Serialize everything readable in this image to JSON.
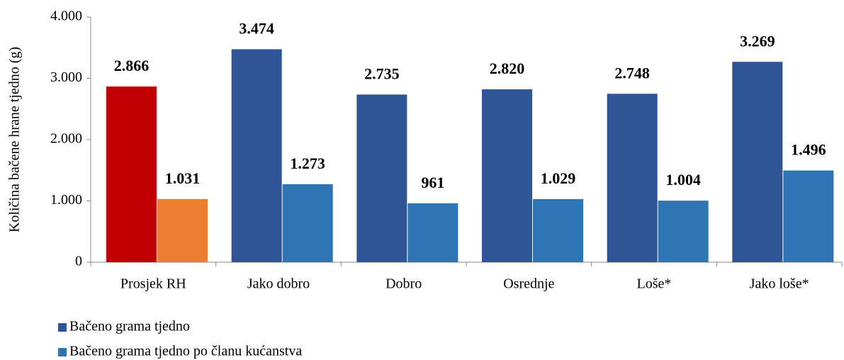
{
  "chart_data": {
    "type": "bar",
    "y_label": "Količina bačene hrane tjedno (g)",
    "categories": [
      "Prosjek RH",
      "Jako dobro",
      "Dobro",
      "Osrednje",
      "Loše*",
      "Jako loše*"
    ],
    "series": [
      {
        "name": "Bačeno grama tjedno",
        "color": "#2f5597",
        "colors": [
          "#c00000",
          "#2f5597",
          "#2f5597",
          "#2f5597",
          "#2f5597",
          "#2f5597"
        ],
        "values": [
          2866,
          3474,
          2735,
          2820,
          2748,
          3269
        ],
        "value_labels": [
          "2.866",
          "3.474",
          "2.735",
          "2.820",
          "2.748",
          "3.269"
        ]
      },
      {
        "name": "Bačeno grama tjedno po članu kućanstva",
        "color": "#2e75b6",
        "colors": [
          "#ed7d31",
          "#2e75b6",
          "#2e75b6",
          "#2e75b6",
          "#2e75b6",
          "#2e75b6"
        ],
        "values": [
          1031,
          1273,
          961,
          1029,
          1004,
          1496
        ],
        "value_labels": [
          "1.031",
          "1.273",
          "961",
          "1.029",
          "1.004",
          "1.496"
        ]
      }
    ],
    "ylim": [
      0,
      4000
    ],
    "yticks": [
      0,
      {
        "value": 1000,
        "label": "1.000"
      },
      {
        "value": 2000,
        "label": "2.000"
      },
      {
        "value": 3000,
        "label": "3.000"
      },
      {
        "value": 4000,
        "label": "4.000"
      }
    ],
    "legend": "bottom-left"
  }
}
